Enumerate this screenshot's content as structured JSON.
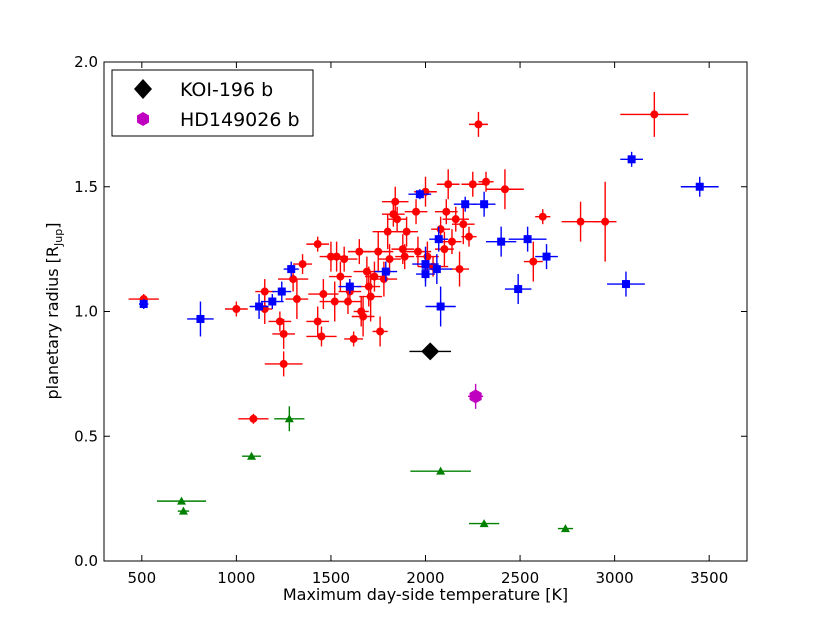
{
  "chart_data": {
    "type": "scatter",
    "title": "",
    "xlabel": "Maximum day-side temperature [K]",
    "ylabel_main": "planetary radius [R",
    "ylabel_sub": "Jup",
    "ylabel_close": "]",
    "xlim": [
      300,
      3700
    ],
    "ylim": [
      0.0,
      2.0
    ],
    "xticks": [
      500,
      1000,
      1500,
      2000,
      2500,
      3000,
      3500
    ],
    "yticks": [
      0.0,
      0.5,
      1.0,
      1.5,
      2.0
    ],
    "xtick_labels": [
      "500",
      "1000",
      "1500",
      "2000",
      "2500",
      "3000",
      "3500"
    ],
    "ytick_labels": [
      "0.0",
      "0.5",
      "1.0",
      "1.5",
      "2.0"
    ],
    "legend_position": "top-left",
    "colors": {
      "red": "#ff0000",
      "blue": "#0000ff",
      "green": "#008000",
      "black": "#000000",
      "magenta": "#bf00bf"
    },
    "legend": [
      {
        "label": "KOI-196 b",
        "marker": "diamond",
        "color": "#000000"
      },
      {
        "label": "HD149026 b",
        "marker": "hexagon",
        "color": "#bf00bf"
      }
    ],
    "series": [
      {
        "name": "red",
        "marker": "circle",
        "color": "#ff0000",
        "points": [
          [
            510,
            1.05,
            80,
            0.02
          ],
          [
            1000,
            1.01,
            60,
            0.03
          ],
          [
            1090,
            0.57,
            80,
            0.02
          ],
          [
            1150,
            1.08,
            50,
            0.05
          ],
          [
            1150,
            1.01,
            40,
            0.06
          ],
          [
            1230,
            0.96,
            60,
            0.04
          ],
          [
            1250,
            0.91,
            60,
            0.06
          ],
          [
            1250,
            0.79,
            100,
            0.05
          ],
          [
            1300,
            1.13,
            80,
            0.05
          ],
          [
            1320,
            1.05,
            60,
            0.08
          ],
          [
            1350,
            1.19,
            50,
            0.04
          ],
          [
            1430,
            1.27,
            60,
            0.03
          ],
          [
            1430,
            0.96,
            60,
            0.06
          ],
          [
            1450,
            0.9,
            80,
            0.04
          ],
          [
            1460,
            1.07,
            80,
            0.06
          ],
          [
            1500,
            1.22,
            60,
            0.06
          ],
          [
            1520,
            1.04,
            80,
            0.08
          ],
          [
            1530,
            1.22,
            60,
            0.06
          ],
          [
            1550,
            1.14,
            60,
            0.06
          ],
          [
            1570,
            1.21,
            70,
            0.05
          ],
          [
            1590,
            1.04,
            70,
            0.05
          ],
          [
            1600,
            1.08,
            60,
            0.05
          ],
          [
            1620,
            0.89,
            50,
            0.03
          ],
          [
            1650,
            1.24,
            60,
            0.05
          ],
          [
            1660,
            1.0,
            40,
            0.06
          ],
          [
            1670,
            0.98,
            60,
            0.08
          ],
          [
            1690,
            1.16,
            70,
            0.06
          ],
          [
            1700,
            1.1,
            60,
            0.08
          ],
          [
            1710,
            1.06,
            60,
            0.1
          ],
          [
            1730,
            1.14,
            50,
            0.06
          ],
          [
            1750,
            1.24,
            80,
            0.08
          ],
          [
            1760,
            0.92,
            40,
            0.06
          ],
          [
            1780,
            1.13,
            70,
            0.07
          ],
          [
            1800,
            1.32,
            80,
            0.07
          ],
          [
            1810,
            1.21,
            60,
            0.06
          ],
          [
            1830,
            1.39,
            60,
            0.05
          ],
          [
            1840,
            1.44,
            70,
            0.06
          ],
          [
            1850,
            1.37,
            50,
            0.05
          ],
          [
            1880,
            1.25,
            60,
            0.06
          ],
          [
            1890,
            1.22,
            50,
            0.05
          ],
          [
            1900,
            1.32,
            60,
            0.06
          ],
          [
            1950,
            1.4,
            60,
            0.05
          ],
          [
            1960,
            1.24,
            70,
            0.06
          ],
          [
            2000,
            1.48,
            60,
            0.06
          ],
          [
            2010,
            1.22,
            60,
            0.06
          ],
          [
            2040,
            1.18,
            80,
            0.04
          ],
          [
            2080,
            1.33,
            50,
            0.05
          ],
          [
            2100,
            1.25,
            50,
            0.07
          ],
          [
            2110,
            1.4,
            60,
            0.05
          ],
          [
            2120,
            1.51,
            60,
            0.06
          ],
          [
            2140,
            1.28,
            50,
            0.05
          ],
          [
            2160,
            1.37,
            70,
            0.05
          ],
          [
            2180,
            1.17,
            50,
            0.07
          ],
          [
            2200,
            1.35,
            60,
            0.08
          ],
          [
            2230,
            1.3,
            40,
            0.04
          ],
          [
            2250,
            1.51,
            60,
            0.05
          ],
          [
            2280,
            1.75,
            50,
            0.05
          ],
          [
            2320,
            1.52,
            40,
            0.04
          ],
          [
            2420,
            1.49,
            100,
            0.08
          ],
          [
            2570,
            1.2,
            50,
            0.08
          ],
          [
            2620,
            1.38,
            40,
            0.03
          ],
          [
            2820,
            1.36,
            100,
            0.08
          ],
          [
            2950,
            1.36,
            60,
            0.16
          ],
          [
            3210,
            1.79,
            180,
            0.09
          ]
        ]
      },
      {
        "name": "blue",
        "marker": "square",
        "color": "#0000ff",
        "points": [
          [
            510,
            1.03,
            25,
            0.02
          ],
          [
            810,
            0.97,
            70,
            0.07
          ],
          [
            1120,
            1.02,
            50,
            0.05
          ],
          [
            1190,
            1.04,
            60,
            0.03
          ],
          [
            1240,
            1.08,
            50,
            0.04
          ],
          [
            1290,
            1.17,
            40,
            0.03
          ],
          [
            1600,
            1.1,
            60,
            0.03
          ],
          [
            1790,
            1.16,
            60,
            0.04
          ],
          [
            1970,
            1.47,
            60,
            0.02
          ],
          [
            2000,
            1.19,
            70,
            0.07
          ],
          [
            2000,
            1.15,
            50,
            0.05
          ],
          [
            2060,
            1.17,
            80,
            0.06
          ],
          [
            2070,
            1.29,
            50,
            0.05
          ],
          [
            2080,
            1.02,
            80,
            0.08
          ],
          [
            2210,
            1.43,
            60,
            0.03
          ],
          [
            2310,
            1.43,
            60,
            0.05
          ],
          [
            2400,
            1.28,
            80,
            0.06
          ],
          [
            2490,
            1.09,
            70,
            0.06
          ],
          [
            2540,
            1.29,
            100,
            0.05
          ],
          [
            2640,
            1.22,
            60,
            0.05
          ],
          [
            3060,
            1.11,
            100,
            0.05
          ],
          [
            3090,
            1.61,
            60,
            0.03
          ],
          [
            3450,
            1.5,
            100,
            0.04
          ]
        ]
      },
      {
        "name": "green",
        "marker": "triangle",
        "color": "#008000",
        "points": [
          [
            710,
            0.24,
            130,
            0.01
          ],
          [
            720,
            0.2,
            30,
            0.01
          ],
          [
            1080,
            0.42,
            50,
            0.01
          ],
          [
            1280,
            0.57,
            80,
            0.05
          ],
          [
            2080,
            0.36,
            160,
            0.01
          ],
          [
            2310,
            0.15,
            80,
            0.01
          ],
          [
            2740,
            0.13,
            40,
            0.01
          ]
        ]
      },
      {
        "name": "KOI-196 b",
        "marker": "diamond",
        "color": "#000000",
        "points": [
          [
            2025,
            0.84,
            110,
            0.0
          ]
        ]
      },
      {
        "name": "HD149026 b",
        "marker": "hexagon",
        "color": "#bf00bf",
        "points": [
          [
            2265,
            0.66,
            40,
            0.05
          ]
        ]
      }
    ]
  }
}
